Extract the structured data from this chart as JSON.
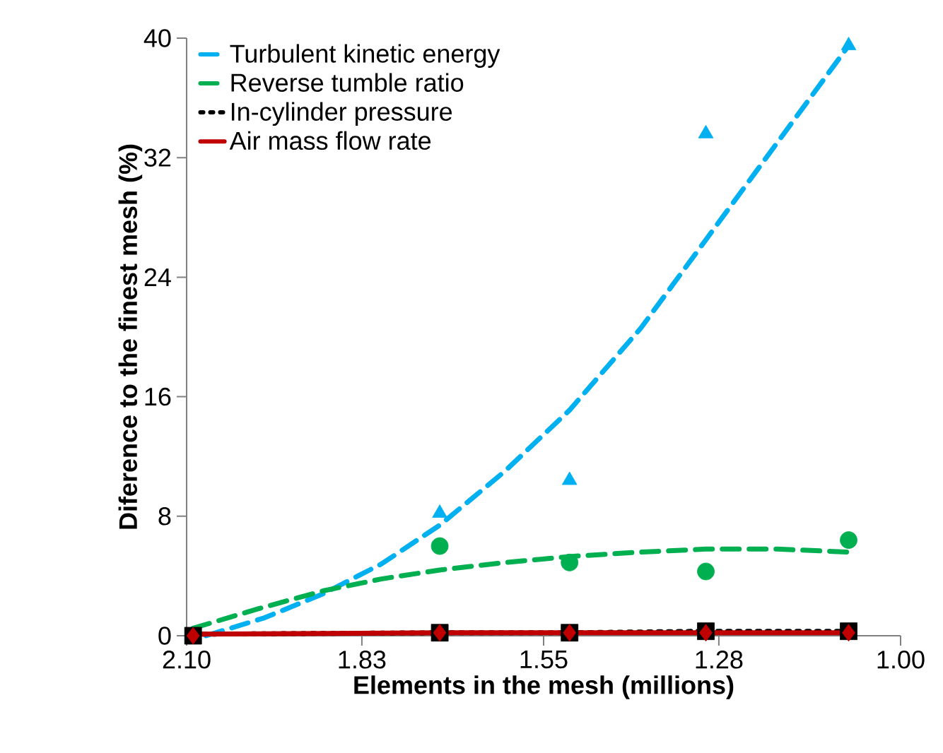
{
  "chart_data": {
    "type": "line",
    "xlabel": "Elements in the mesh (millions)",
    "ylabel": "Diference to the finest mesh (%)",
    "xlim": [
      2.1,
      1.0
    ],
    "xticks": [
      {
        "value": 2.1,
        "label": "2.10"
      },
      {
        "value": 1.83,
        "label": "1.83"
      },
      {
        "value": 1.55,
        "label": "1.55"
      },
      {
        "value": 1.28,
        "label": "1.28"
      },
      {
        "value": 1.0,
        "label": "1.00"
      }
    ],
    "ylim": [
      0,
      40
    ],
    "yticks": [
      0,
      8,
      16,
      24,
      32,
      40
    ],
    "legend": "top left",
    "series": [
      {
        "name": "Turbulent kinetic energy",
        "color": "#00b0f0",
        "line_style": "dashed",
        "marker": "none",
        "x": [
          2.07,
          1.98,
          1.89,
          1.8,
          1.71,
          1.61,
          1.51,
          1.4,
          1.3,
          1.19,
          1.08
        ],
        "values": [
          0.0,
          1.2,
          2.8,
          4.8,
          7.4,
          11.0,
          15.1,
          20.6,
          26.5,
          33.0,
          39.5
        ]
      },
      {
        "name": "Reverse tumble ratio",
        "color": "#00b050",
        "line_style": "dashed",
        "marker": "none",
        "x": [
          2.09,
          1.99,
          1.89,
          1.8,
          1.71,
          1.61,
          1.51,
          1.4,
          1.3,
          1.19,
          1.08
        ],
        "values": [
          0.5,
          1.8,
          3.0,
          3.8,
          4.4,
          4.9,
          5.3,
          5.6,
          5.8,
          5.8,
          5.6
        ]
      },
      {
        "name": "In-cylinder pressure",
        "color": "#000000",
        "line_style": "dotted",
        "marker": "none",
        "x": [
          2.09,
          1.71,
          1.51,
          1.3,
          1.08
        ],
        "values": [
          0.1,
          0.2,
          0.2,
          0.3,
          0.3
        ]
      },
      {
        "name": "Air mass flow rate",
        "color": "#c00000",
        "line_style": "solid",
        "marker": "none",
        "x": [
          2.09,
          1.71,
          1.51,
          1.3,
          1.08
        ],
        "values": [
          0.1,
          0.2,
          0.2,
          0.2,
          0.2
        ]
      },
      {
        "type": "scatter",
        "color": "#00b0f0",
        "marker": "triangle",
        "x": [
          1.71,
          1.51,
          1.3,
          1.08
        ],
        "values": [
          8.2,
          10.4,
          33.6,
          39.5
        ]
      },
      {
        "type": "scatter",
        "color": "#00b050",
        "marker": "circle",
        "x": [
          1.71,
          1.51,
          1.3,
          1.08
        ],
        "values": [
          6.0,
          4.9,
          4.3,
          6.4
        ]
      },
      {
        "type": "scatter",
        "color": "#000000",
        "marker": "square",
        "x": [
          2.09,
          1.71,
          1.51,
          1.3,
          1.08
        ],
        "values": [
          0.0,
          0.2,
          0.2,
          0.3,
          0.3
        ]
      },
      {
        "type": "scatter",
        "color": "#c00000",
        "marker": "diamond",
        "x": [
          2.09,
          1.71,
          1.51,
          1.3,
          1.08
        ],
        "values": [
          0.0,
          0.2,
          0.2,
          0.2,
          0.2
        ]
      }
    ]
  }
}
